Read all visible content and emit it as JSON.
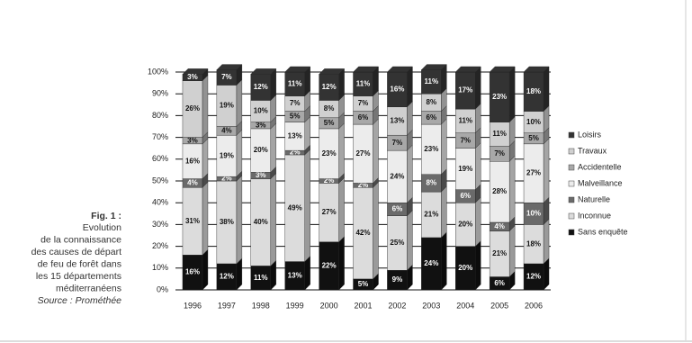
{
  "caption": {
    "figure": "Fig. 1 :",
    "lines": [
      "Evolution",
      "de la connaissance",
      "des causes de départ",
      "de feu de forêt dans",
      "les 15 départements",
      "méditerranéens"
    ],
    "source": "Source : Prométhée"
  },
  "chart_data": {
    "type": "stacked-bar",
    "categories": [
      "1996",
      "1997",
      "1998",
      "1999",
      "2000",
      "2001",
      "2002",
      "2003",
      "2004",
      "2005",
      "2006"
    ],
    "series": [
      {
        "name": "Sans enquête",
        "color": "#111111",
        "values": [
          16,
          12,
          11,
          13,
          22,
          5,
          9,
          24,
          20,
          6,
          12
        ],
        "value_labels": [
          "16%",
          "12%",
          "11%",
          "13%",
          "22%",
          "5%",
          "9%",
          "24%",
          "20%",
          "6%",
          "12%"
        ]
      },
      {
        "name": "Inconnue",
        "color": "#dcdcdc",
        "values": [
          31,
          38,
          40,
          49,
          27,
          42,
          25,
          21,
          20,
          21,
          18
        ],
        "value_labels": [
          "31%",
          "38%",
          "40%",
          "49%",
          "27%",
          "42%",
          "25%",
          "21%",
          "20%",
          "21%",
          "18%"
        ]
      },
      {
        "name": "Naturelle",
        "color": "#6a6a6a",
        "values": [
          4,
          2,
          3,
          2,
          2,
          2,
          6,
          8,
          6,
          4,
          10
        ],
        "value_labels": [
          "4%",
          "2%",
          "3%",
          "2%",
          "2%",
          "2%",
          "6%",
          "8%",
          "6%",
          "4%",
          "10%"
        ]
      },
      {
        "name": "Malveillance",
        "color": "#ececec",
        "values": [
          16,
          19,
          20,
          13,
          23,
          27,
          24,
          23,
          19,
          28,
          27
        ],
        "value_labels": [
          "16%",
          "19%",
          "20%",
          "13%",
          "23%",
          "27%",
          "24%",
          "23%",
          "19%",
          "28%",
          "27%"
        ]
      },
      {
        "name": "Accidentelle",
        "color": "#a8a8a8",
        "values": [
          3,
          4,
          3,
          5,
          5,
          6,
          7,
          6,
          7,
          7,
          5
        ],
        "value_labels": [
          "3%",
          "4%",
          "3%",
          "5%",
          "5%",
          "6%",
          "7%",
          "6%",
          "7%",
          "7%",
          "5%"
        ]
      },
      {
        "name": "Travaux",
        "color": "#d0d0d0",
        "values": [
          26,
          19,
          10,
          7,
          8,
          7,
          13,
          8,
          11,
          11,
          10
        ],
        "value_labels": [
          "26%",
          "19%",
          "10%",
          "7%",
          "8%",
          "7%",
          "13%",
          "8%",
          "11%",
          "11%",
          "10%"
        ]
      },
      {
        "name": "Loisirs",
        "color": "#333333",
        "values": [
          3,
          7,
          12,
          11,
          12,
          11,
          16,
          11,
          17,
          23,
          18
        ],
        "value_labels": [
          "3%",
          "7%",
          "12%",
          "11%",
          "12%",
          "11%",
          "16%",
          "11%",
          "17%",
          "23%",
          "18%"
        ]
      }
    ],
    "ylim": [
      0,
      100
    ],
    "yticks": [
      {
        "value": 0,
        "label": "0%"
      },
      {
        "value": 10,
        "label": "10%"
      },
      {
        "value": 20,
        "label": "20%"
      },
      {
        "value": 30,
        "label": "30%"
      },
      {
        "value": 40,
        "label": "40%"
      },
      {
        "value": 50,
        "label": "50%"
      },
      {
        "value": 60,
        "label": "60%"
      },
      {
        "value": 70,
        "label": "70%"
      },
      {
        "value": 80,
        "label": "80%"
      },
      {
        "value": 90,
        "label": "90%"
      },
      {
        "value": 100,
        "label": "100%"
      }
    ],
    "grid": true,
    "legend": "right"
  }
}
